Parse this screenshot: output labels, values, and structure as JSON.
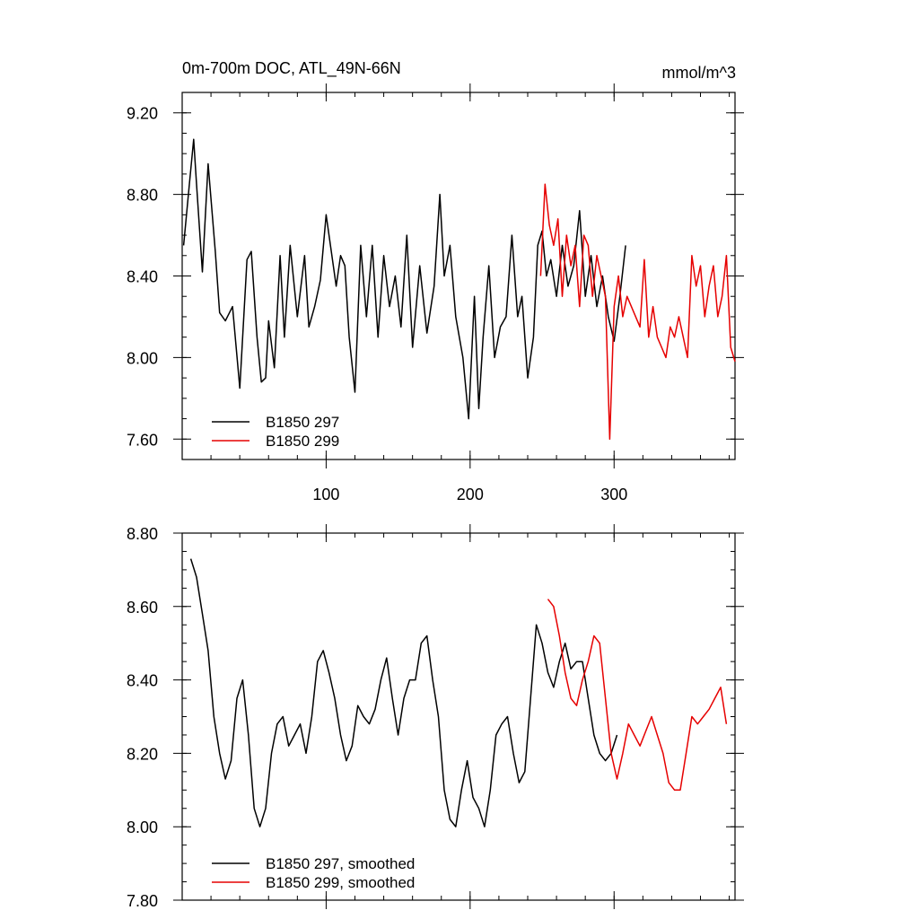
{
  "chart_data": [
    {
      "type": "line",
      "title": "0m-700m DOC, ATL_49N-66N",
      "units": "mmol/m^3",
      "xlim": [
        0,
        384
      ],
      "ylim": [
        7.5,
        9.3
      ],
      "yticks": [
        7.6,
        8.0,
        8.4,
        8.8,
        9.2
      ],
      "ytick_labels": [
        "7.60",
        "8.00",
        "8.40",
        "8.80",
        "9.20"
      ],
      "xticks": [
        100,
        200,
        300
      ],
      "xtick_labels": [
        "100",
        "200",
        "300"
      ],
      "legend_position": "bottom-left",
      "series": [
        {
          "name": "B1850 297",
          "color": "#000000",
          "x": [
            1,
            5,
            8,
            10,
            14,
            18,
            23,
            26,
            30,
            35,
            40,
            45,
            48,
            52,
            55,
            58,
            60,
            64,
            68,
            71,
            75,
            80,
            85,
            88,
            92,
            96,
            100,
            103,
            107,
            110,
            113,
            116,
            120,
            124,
            128,
            132,
            136,
            140,
            144,
            148,
            152,
            156,
            160,
            165,
            170,
            175,
            179,
            182,
            186,
            190,
            195,
            199,
            203,
            206,
            209,
            213,
            217,
            221,
            225,
            229,
            233,
            236,
            240,
            244,
            247,
            250,
            253,
            256,
            260,
            264,
            268,
            272,
            276,
            280,
            284,
            288,
            292,
            296,
            300,
            304,
            308
          ],
          "y": [
            8.55,
            8.85,
            9.07,
            8.85,
            8.42,
            8.95,
            8.52,
            8.22,
            8.18,
            8.25,
            7.85,
            8.48,
            8.52,
            8.1,
            7.88,
            7.9,
            8.18,
            7.95,
            8.5,
            8.1,
            8.55,
            8.2,
            8.5,
            8.15,
            8.25,
            8.38,
            8.7,
            8.55,
            8.35,
            8.5,
            8.45,
            8.1,
            7.83,
            8.55,
            8.2,
            8.55,
            8.1,
            8.5,
            8.25,
            8.4,
            8.15,
            8.6,
            8.05,
            8.45,
            8.12,
            8.35,
            8.8,
            8.4,
            8.55,
            8.2,
            8.0,
            7.7,
            8.3,
            7.75,
            8.1,
            8.45,
            8.0,
            8.15,
            8.2,
            8.6,
            8.2,
            8.3,
            7.9,
            8.1,
            8.55,
            8.62,
            8.4,
            8.48,
            8.3,
            8.55,
            8.35,
            8.45,
            8.72,
            8.3,
            8.5,
            8.25,
            8.4,
            8.2,
            8.08,
            8.3,
            8.55
          ]
        },
        {
          "name": "B1850 299",
          "color": "#e60000",
          "x": [
            249,
            252,
            255,
            258,
            261,
            264,
            267,
            270,
            273,
            276,
            279,
            282,
            285,
            288,
            291,
            294,
            297,
            300,
            303,
            306,
            309,
            312,
            315,
            318,
            321,
            324,
            327,
            330,
            333,
            336,
            339,
            342,
            345,
            348,
            351,
            354,
            357,
            360,
            363,
            366,
            369,
            372,
            375,
            378,
            381,
            384
          ],
          "y": [
            8.4,
            8.85,
            8.65,
            8.55,
            8.68,
            8.3,
            8.6,
            8.45,
            8.55,
            8.25,
            8.6,
            8.55,
            8.3,
            8.5,
            8.4,
            8.3,
            7.6,
            8.25,
            8.4,
            8.2,
            8.3,
            8.25,
            8.2,
            8.15,
            8.48,
            8.1,
            8.25,
            8.1,
            8.05,
            8.0,
            8.15,
            8.1,
            8.2,
            8.1,
            8.0,
            8.5,
            8.35,
            8.45,
            8.2,
            8.35,
            8.45,
            8.2,
            8.3,
            8.5,
            8.05,
            7.98
          ]
        }
      ]
    },
    {
      "type": "line",
      "xlim": [
        0,
        384
      ],
      "ylim": [
        7.8,
        8.8
      ],
      "yticks": [
        7.8,
        8.0,
        8.2,
        8.4,
        8.6,
        8.8
      ],
      "ytick_labels": [
        "7.80",
        "8.00",
        "8.20",
        "8.40",
        "8.60",
        "8.80"
      ],
      "xticks": [
        100,
        200,
        300
      ],
      "legend_position": "bottom-left",
      "series": [
        {
          "name": "B1850 297, smoothed",
          "color": "#000000",
          "x": [
            6,
            10,
            14,
            18,
            22,
            26,
            30,
            34,
            38,
            42,
            46,
            50,
            54,
            58,
            62,
            66,
            70,
            74,
            78,
            82,
            86,
            90,
            94,
            98,
            102,
            106,
            110,
            114,
            118,
            122,
            126,
            130,
            134,
            138,
            142,
            146,
            150,
            154,
            158,
            162,
            166,
            170,
            174,
            178,
            182,
            186,
            190,
            194,
            198,
            202,
            206,
            210,
            214,
            218,
            222,
            226,
            230,
            234,
            238,
            242,
            246,
            250,
            254,
            258,
            262,
            266,
            270,
            274,
            278,
            282,
            286,
            290,
            294,
            298,
            302
          ],
          "y": [
            8.73,
            8.68,
            8.58,
            8.48,
            8.3,
            8.2,
            8.13,
            8.18,
            8.35,
            8.4,
            8.25,
            8.05,
            8.0,
            8.05,
            8.2,
            8.28,
            8.3,
            8.22,
            8.25,
            8.28,
            8.2,
            8.3,
            8.45,
            8.48,
            8.42,
            8.35,
            8.25,
            8.18,
            8.22,
            8.33,
            8.3,
            8.28,
            8.32,
            8.4,
            8.46,
            8.35,
            8.25,
            8.35,
            8.4,
            8.4,
            8.5,
            8.52,
            8.4,
            8.3,
            8.1,
            8.02,
            8.0,
            8.1,
            8.18,
            8.08,
            8.05,
            8.0,
            8.1,
            8.25,
            8.28,
            8.3,
            8.2,
            8.12,
            8.15,
            8.35,
            8.55,
            8.5,
            8.42,
            8.38,
            8.45,
            8.5,
            8.43,
            8.45,
            8.45,
            8.35,
            8.25,
            8.2,
            8.18,
            8.2,
            8.25
          ]
        },
        {
          "name": "B1850 299, smoothed",
          "color": "#e60000",
          "x": [
            254,
            258,
            262,
            266,
            270,
            274,
            278,
            282,
            286,
            290,
            294,
            298,
            302,
            306,
            310,
            314,
            318,
            322,
            326,
            330,
            334,
            338,
            342,
            346,
            350,
            354,
            358,
            362,
            366,
            370,
            374,
            378
          ],
          "y": [
            8.62,
            8.6,
            8.52,
            8.42,
            8.35,
            8.33,
            8.4,
            8.45,
            8.52,
            8.5,
            8.35,
            8.2,
            8.13,
            8.2,
            8.28,
            8.25,
            8.22,
            8.26,
            8.3,
            8.25,
            8.2,
            8.12,
            8.1,
            8.1,
            8.2,
            8.3,
            8.28,
            8.3,
            8.32,
            8.35,
            8.38,
            8.28
          ]
        }
      ]
    }
  ]
}
